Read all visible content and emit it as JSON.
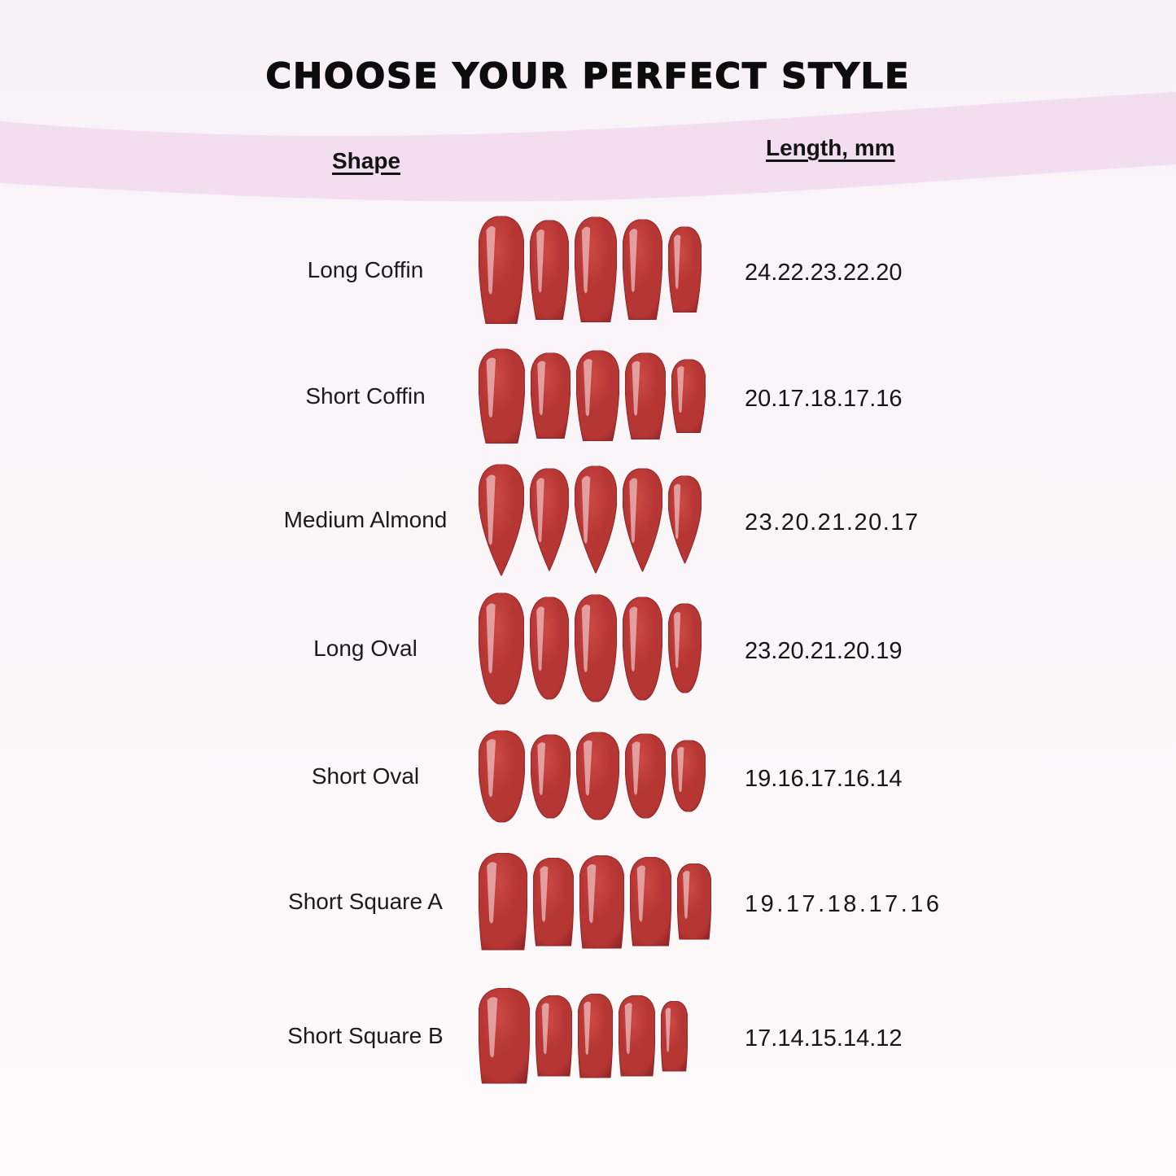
{
  "chart_data": {
    "type": "table",
    "title": "CHOOSE YOUR PERFECT STYLE",
    "columns": [
      "Shape",
      "Length, mm"
    ],
    "rows": [
      [
        "Long Coffin",
        "24.22.23.22.20"
      ],
      [
        "Short Coffin",
        "20.17.18.17.16"
      ],
      [
        "Medium Almond",
        "23.20.21.20.17"
      ],
      [
        "Long Oval",
        "23.20.21.20.19"
      ],
      [
        "Short Oval",
        "19.16.17.16.14"
      ],
      [
        "Short Square A",
        "19.17.18.17.16"
      ],
      [
        "Short Square B",
        "17.14.15.14.12"
      ]
    ],
    "row_nail_shapes": [
      "coffin",
      "coffin",
      "almond",
      "oval",
      "oval",
      "square",
      "square"
    ],
    "nails_per_row": 5
  },
  "colors": {
    "background": "#faf5f8",
    "band_pink": "#f3ddf0",
    "nail_red": "#b63634",
    "nail_red_light": "#cc4943",
    "nail_red_dark": "#8e2427",
    "text": "#161616"
  }
}
